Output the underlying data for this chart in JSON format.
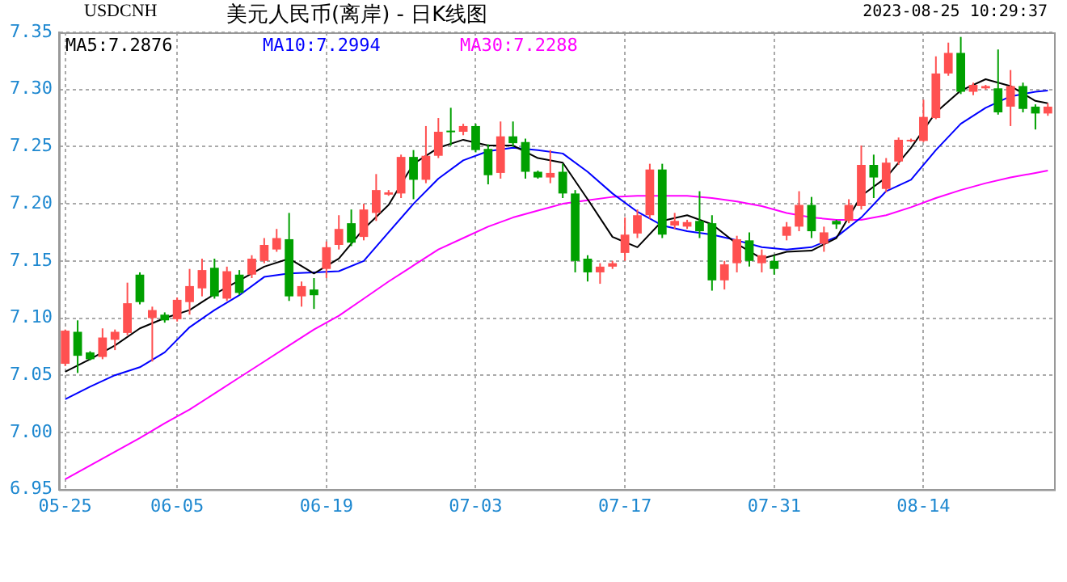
{
  "chart_data": {
    "type": "candlestick",
    "title": "美元人民币(离岸) - 日K线图",
    "subtitle": "USDCNH",
    "annotations": [
      "2023-08-25 10:29:37"
    ],
    "categories": [
      "05-25",
      null,
      null,
      null,
      null,
      null,
      null,
      null,
      null,
      "06-05",
      null,
      null,
      null,
      null,
      null,
      null,
      null,
      null,
      null,
      null,
      null,
      "06-19",
      null,
      null,
      null,
      null,
      null,
      null,
      null,
      null,
      null,
      null,
      null,
      "07-03",
      null,
      null,
      null,
      null,
      null,
      null,
      null,
      null,
      null,
      null,
      null,
      "07-17",
      null,
      null,
      null,
      null,
      null,
      null,
      null,
      null,
      null,
      null,
      null,
      "07-31",
      null,
      null,
      null,
      null,
      null,
      null,
      null,
      null,
      null,
      null,
      null,
      "08-14",
      null,
      null,
      null,
      null,
      null,
      null,
      null,
      null,
      null,
      null
    ],
    "ohlc": [
      [
        7.06,
        7.09,
        7.058,
        7.089
      ],
      [
        7.088,
        7.098,
        7.052,
        7.067
      ],
      [
        7.07,
        7.071,
        7.063,
        7.064
      ],
      [
        7.066,
        7.091,
        7.064,
        7.083
      ],
      [
        7.081,
        7.09,
        7.072,
        7.088
      ],
      [
        7.087,
        7.131,
        7.085,
        7.113
      ],
      [
        7.138,
        7.14,
        7.112,
        7.114
      ],
      [
        7.1,
        7.11,
        7.062,
        7.107
      ],
      [
        7.103,
        7.105,
        7.096,
        7.098
      ],
      [
        7.099,
        7.118,
        7.097,
        7.116
      ],
      [
        7.114,
        7.143,
        7.103,
        7.128
      ],
      [
        7.126,
        7.152,
        7.119,
        7.142
      ],
      [
        7.144,
        7.152,
        7.117,
        7.119
      ],
      [
        7.117,
        7.145,
        7.115,
        7.141
      ],
      [
        7.138,
        7.142,
        7.12,
        7.122
      ],
      [
        7.138,
        7.155,
        7.135,
        7.152
      ],
      [
        7.15,
        7.17,
        7.148,
        7.164
      ],
      [
        7.16,
        7.178,
        7.158,
        7.17
      ],
      [
        7.169,
        7.192,
        7.115,
        7.119
      ],
      [
        7.119,
        7.132,
        7.11,
        7.128
      ],
      [
        7.125,
        7.135,
        7.108,
        7.12
      ],
      [
        7.143,
        7.167,
        7.135,
        7.162
      ],
      [
        7.164,
        7.19,
        7.16,
        7.178
      ],
      [
        7.183,
        7.195,
        7.163,
        7.166
      ],
      [
        7.171,
        7.2,
        7.168,
        7.195
      ],
      [
        7.192,
        7.226,
        7.185,
        7.212
      ],
      [
        7.208,
        7.212,
        7.207,
        7.21
      ],
      [
        7.209,
        7.243,
        7.205,
        7.241
      ],
      [
        7.241,
        7.247,
        7.204,
        7.221
      ],
      [
        7.221,
        7.268,
        7.218,
        7.242
      ],
      [
        7.242,
        7.275,
        7.24,
        7.263
      ],
      [
        7.264,
        7.284,
        7.251,
        7.263
      ],
      [
        7.263,
        7.27,
        7.26,
        7.268
      ],
      [
        7.268,
        7.27,
        7.245,
        7.247
      ],
      [
        7.248,
        7.252,
        7.217,
        7.225
      ],
      [
        7.227,
        7.272,
        7.222,
        7.259
      ],
      [
        7.259,
        7.272,
        7.25,
        7.253
      ],
      [
        7.254,
        7.257,
        7.222,
        7.228
      ],
      [
        7.228,
        7.229,
        7.222,
        7.223
      ],
      [
        7.223,
        7.247,
        7.218,
        7.227
      ],
      [
        7.228,
        7.235,
        7.205,
        7.209
      ],
      [
        7.209,
        7.212,
        7.14,
        7.15
      ],
      [
        7.152,
        7.155,
        7.132,
        7.14
      ],
      [
        7.14,
        7.148,
        7.13,
        7.145
      ],
      [
        7.145,
        7.15,
        7.143,
        7.148
      ],
      [
        7.157,
        7.188,
        7.15,
        7.173
      ],
      [
        7.174,
        7.195,
        7.17,
        7.19
      ],
      [
        7.19,
        7.235,
        7.187,
        7.23
      ],
      [
        7.23,
        7.235,
        7.17,
        7.173
      ],
      [
        7.181,
        7.192,
        7.178,
        7.185
      ],
      [
        7.18,
        7.186,
        7.178,
        7.184
      ],
      [
        7.185,
        7.211,
        7.17,
        7.176
      ],
      [
        7.183,
        7.19,
        7.124,
        7.133
      ],
      [
        7.133,
        7.15,
        7.125,
        7.147
      ],
      [
        7.148,
        7.172,
        7.14,
        7.169
      ],
      [
        7.168,
        7.175,
        7.145,
        7.15
      ],
      [
        7.148,
        7.16,
        7.14,
        7.155
      ],
      [
        7.15,
        7.155,
        7.138,
        7.143
      ],
      [
        7.172,
        7.184,
        7.168,
        7.18
      ],
      [
        7.18,
        7.211,
        7.176,
        7.199
      ],
      [
        7.199,
        7.206,
        7.17,
        7.176
      ],
      [
        7.165,
        7.18,
        7.158,
        7.175
      ],
      [
        7.185,
        7.186,
        7.178,
        7.182
      ],
      [
        7.185,
        7.204,
        7.183,
        7.199
      ],
      [
        7.198,
        7.251,
        7.195,
        7.234
      ],
      [
        7.234,
        7.243,
        7.205,
        7.223
      ],
      [
        7.213,
        7.24,
        7.21,
        7.236
      ],
      [
        7.237,
        7.258,
        7.234,
        7.256
      ],
      [
        7.255,
        7.257,
        7.254,
        7.256
      ],
      [
        7.255,
        7.291,
        7.254,
        7.276
      ],
      [
        7.275,
        7.329,
        7.274,
        7.314
      ],
      [
        7.314,
        7.341,
        7.312,
        7.332
      ],
      [
        7.332,
        7.346,
        7.296,
        7.298
      ],
      [
        7.298,
        7.306,
        7.295,
        7.304
      ],
      [
        7.301,
        7.304,
        7.3,
        7.303
      ],
      [
        7.301,
        7.335,
        7.278,
        7.28
      ],
      [
        7.285,
        7.317,
        7.268,
        7.303
      ],
      [
        7.303,
        7.306,
        7.28,
        7.283
      ],
      [
        7.285,
        7.287,
        7.265,
        7.279
      ],
      [
        7.279,
        7.288,
        7.277,
        7.285
      ]
    ],
    "colors": [
      "#ff5050",
      "#00a000",
      "#00a000",
      "#ff5050",
      "#ff5050",
      "#ff5050",
      "#00a000",
      "#ff5050",
      "#00a000",
      "#ff5050",
      "#ff5050",
      "#ff5050",
      "#00a000",
      "#ff5050",
      "#00a000",
      "#ff5050",
      "#ff5050",
      "#ff5050",
      "#00a000",
      "#ff5050",
      "#00a000",
      "#ff5050",
      "#ff5050",
      "#00a000",
      "#ff5050",
      "#ff5050",
      "#ff5050",
      "#ff5050",
      "#00a000",
      "#ff5050",
      "#ff5050",
      "#00a000",
      "#ff5050",
      "#00a000",
      "#00a000",
      "#ff5050",
      "#00a000",
      "#00a000",
      "#00a000",
      "#ff5050",
      "#00a000",
      "#00a000",
      "#00a000",
      "#ff5050",
      "#ff5050",
      "#ff5050",
      "#ff5050",
      "#ff5050",
      "#00a000",
      "#ff5050",
      "#ff5050",
      "#00a000",
      "#00a000",
      "#ff5050",
      "#ff5050",
      "#00a000",
      "#ff5050",
      "#00a000",
      "#ff5050",
      "#ff5050",
      "#00a000",
      "#ff5050",
      "#00a000",
      "#ff5050",
      "#ff5050",
      "#00a000",
      "#ff5050",
      "#ff5050",
      "#ff5050",
      "#ff5050",
      "#ff5050",
      "#ff5050",
      "#00a000",
      "#ff5050",
      "#ff5050",
      "#00a000",
      "#ff5050",
      "#00a000",
      "#00a000",
      "#ff5050"
    ],
    "series": [
      {
        "name": "MA5:7.2876",
        "type": "line",
        "color": "#000000",
        "values": [
          7.053,
          null,
          7.064,
          null,
          7.076,
          null,
          7.091,
          null,
          7.1,
          null,
          7.107,
          null,
          7.121,
          null,
          7.133,
          null,
          7.145,
          null,
          7.152,
          null,
          7.139,
          null,
          7.152,
          null,
          7.178,
          null,
          7.199,
          null,
          7.235,
          null,
          7.249,
          null,
          7.256,
          null,
          7.251,
          null,
          7.251,
          null,
          7.24,
          null,
          7.236,
          null,
          7.204,
          null,
          7.171,
          null,
          7.162,
          null,
          7.185,
          null,
          7.19,
          null,
          7.182,
          null,
          7.165,
          null,
          7.152,
          null,
          7.158,
          null,
          7.159,
          null,
          7.17,
          null,
          7.207,
          null,
          7.223,
          null,
          7.249,
          null,
          7.28,
          null,
          7.299,
          null,
          7.309,
          null,
          7.303,
          null,
          7.29,
          7.288
        ]
      },
      {
        "name": "MA10:7.2994",
        "type": "line",
        "color": "#0000ff",
        "values": [
          7.029,
          null,
          7.04,
          null,
          7.05,
          null,
          7.057,
          null,
          7.07,
          null,
          7.092,
          null,
          7.107,
          null,
          7.12,
          null,
          7.136,
          null,
          7.139,
          null,
          7.14,
          null,
          7.141,
          null,
          7.15,
          null,
          7.175,
          null,
          7.2,
          null,
          7.222,
          null,
          7.238,
          null,
          7.246,
          null,
          7.249,
          null,
          7.247,
          null,
          7.244,
          null,
          7.228,
          null,
          7.209,
          null,
          7.193,
          null,
          7.181,
          null,
          7.176,
          null,
          7.173,
          null,
          7.168,
          null,
          7.162,
          null,
          7.16,
          null,
          7.162,
          null,
          7.171,
          null,
          7.188,
          null,
          7.211,
          null,
          7.221,
          null,
          7.247,
          null,
          7.27,
          null,
          7.284,
          null,
          7.294,
          null,
          7.298,
          7.299
        ]
      },
      {
        "name": "MA30:7.2288",
        "type": "line",
        "color": "#ff00ff",
        "values": [
          6.959,
          null,
          6.971,
          null,
          6.983,
          null,
          6.995,
          null,
          7.008,
          null,
          7.02,
          null,
          7.034,
          null,
          7.048,
          null,
          7.062,
          null,
          7.076,
          null,
          7.09,
          null,
          7.102,
          null,
          7.117,
          null,
          7.132,
          null,
          7.146,
          null,
          7.16,
          null,
          7.17,
          null,
          7.18,
          null,
          7.188,
          null,
          7.194,
          null,
          7.2,
          null,
          7.203,
          null,
          7.206,
          null,
          7.207,
          null,
          7.207,
          null,
          7.207,
          null,
          7.205,
          null,
          7.202,
          null,
          7.198,
          null,
          7.192,
          null,
          7.188,
          null,
          7.186,
          null,
          7.186,
          null,
          7.19,
          null,
          7.197,
          null,
          7.205,
          null,
          7.212,
          null,
          7.218,
          null,
          7.223,
          null,
          7.227,
          7.229
        ]
      }
    ],
    "ylim": [
      6.95,
      7.35
    ],
    "yticks": [
      6.95,
      {
        "value": 7,
        "label": "7.00"
      },
      7.05,
      {
        "value": 7.1,
        "label": "7.10"
      },
      7.15,
      {
        "value": 7.2,
        "label": "7.20"
      },
      7.25,
      {
        "value": 7.3,
        "label": "7.30"
      },
      7.35
    ],
    "grid": true,
    "legend": "top left"
  }
}
